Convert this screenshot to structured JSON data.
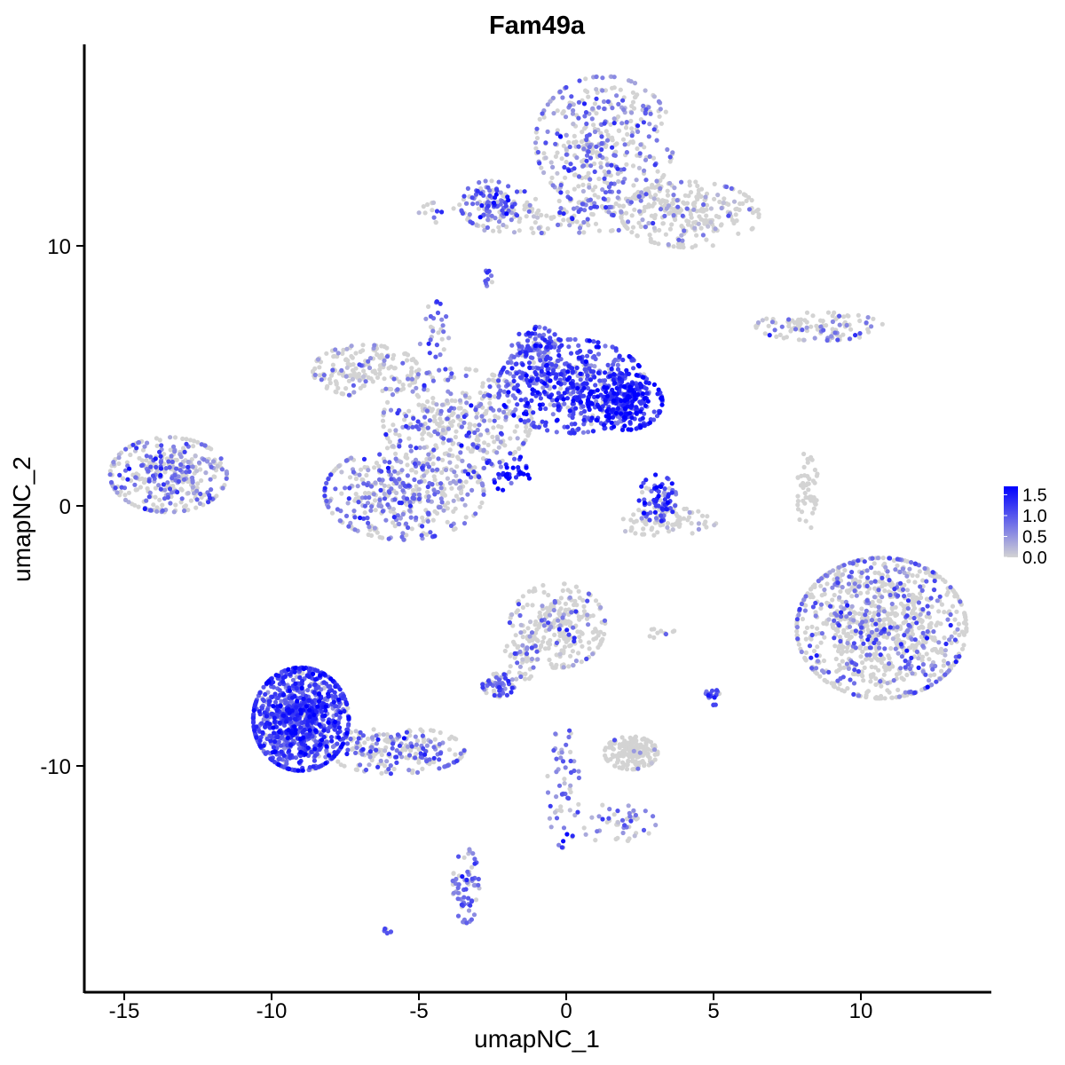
{
  "chart_data": {
    "type": "scatter",
    "title": "Fam49a",
    "xlabel": "umapNC_1",
    "ylabel": "umapNC_2",
    "xlim": [
      -16.5,
      14.5
    ],
    "ylim": [
      -18.5,
      17.5
    ],
    "xticks": [
      -15,
      -10,
      -5,
      0,
      5,
      10
    ],
    "yticks": [
      -10,
      0,
      10
    ],
    "xtick_labels": [
      "-15",
      "-10",
      "-5",
      "0",
      "5",
      "10"
    ],
    "ytick_labels": [
      "-10",
      "0",
      "10"
    ],
    "grid": false,
    "color_scale": {
      "low": "#d3d3d3",
      "high": "#0000ff",
      "min": 0,
      "max": 1.7,
      "breaks": [
        1.5,
        1.0,
        0.5,
        0.0
      ],
      "break_labels": [
        "1.5",
        "1.0",
        "0.5",
        "0.0"
      ],
      "legend_position": "right"
    },
    "clusters": [
      {
        "id": "top-right-cloud",
        "cx": 1.3,
        "cy": 14.0,
        "sx": 1.3,
        "sy": 1.4,
        "n": 420,
        "expr_frac": 0.5,
        "expr_mean": 0.7
      },
      {
        "id": "top-right-arm",
        "cx": 4.2,
        "cy": 11.2,
        "sx": 1.3,
        "sy": 0.7,
        "n": 260,
        "expr_frac": 0.2,
        "expr_mean": 0.6
      },
      {
        "id": "top-bridge",
        "cx": -0.5,
        "cy": 11.3,
        "sx": 2.5,
        "sy": 0.45,
        "n": 180,
        "expr_frac": 0.3,
        "expr_mean": 0.8
      },
      {
        "id": "top-left-tip",
        "cx": -2.6,
        "cy": 11.6,
        "sx": 0.55,
        "sy": 0.5,
        "n": 90,
        "expr_frac": 0.8,
        "expr_mean": 0.9
      },
      {
        "id": "small-island-top",
        "cx": -2.7,
        "cy": 8.8,
        "sx": 0.12,
        "sy": 0.2,
        "n": 10,
        "expr_frac": 0.9,
        "expr_mean": 0.8
      },
      {
        "id": "right-strip",
        "cx": 8.6,
        "cy": 6.9,
        "sx": 1.2,
        "sy": 0.3,
        "n": 110,
        "expr_frac": 0.3,
        "expr_mean": 0.7
      },
      {
        "id": "upper-center-core",
        "cx": 0.2,
        "cy": 4.6,
        "sx": 1.4,
        "sy": 1.0,
        "n": 520,
        "expr_frac": 0.9,
        "expr_mean": 1.1
      },
      {
        "id": "upper-center-right",
        "cx": 2.0,
        "cy": 4.0,
        "sx": 0.7,
        "sy": 0.6,
        "n": 260,
        "expr_frac": 0.95,
        "expr_mean": 1.4
      },
      {
        "id": "upper-center-top",
        "cx": -1.0,
        "cy": 5.8,
        "sx": 0.5,
        "sy": 0.6,
        "n": 120,
        "expr_frac": 0.9,
        "expr_mean": 1.0
      },
      {
        "id": "hub",
        "cx": -3.7,
        "cy": 3.3,
        "sx": 1.4,
        "sy": 1.1,
        "n": 380,
        "expr_frac": 0.4,
        "expr_mean": 0.7
      },
      {
        "id": "left-arm",
        "cx": -6.8,
        "cy": 5.2,
        "sx": 1.0,
        "sy": 0.55,
        "n": 180,
        "expr_frac": 0.2,
        "expr_mean": 0.6
      },
      {
        "id": "lower-blob",
        "cx": -5.5,
        "cy": 0.5,
        "sx": 1.5,
        "sy": 1.0,
        "n": 420,
        "expr_frac": 0.55,
        "expr_mean": 0.7
      },
      {
        "id": "spike",
        "cx": -4.5,
        "cy": 6.8,
        "sx": 0.3,
        "sy": 0.6,
        "n": 30,
        "expr_frac": 0.6,
        "expr_mean": 0.7
      },
      {
        "id": "streak",
        "cx": -1.9,
        "cy": 1.3,
        "sx": 0.5,
        "sy": 0.4,
        "n": 40,
        "expr_frac": 1.0,
        "expr_mean": 1.4
      },
      {
        "id": "far-left",
        "cx": -13.5,
        "cy": 1.2,
        "sx": 1.1,
        "sy": 0.8,
        "n": 360,
        "expr_frac": 0.45,
        "expr_mean": 0.7
      },
      {
        "id": "mid-small",
        "cx": 3.1,
        "cy": 0.3,
        "sx": 0.35,
        "sy": 0.5,
        "n": 80,
        "expr_frac": 0.8,
        "expr_mean": 1.2
      },
      {
        "id": "mid-small-base",
        "cx": 3.3,
        "cy": -0.6,
        "sx": 1.0,
        "sy": 0.3,
        "n": 80,
        "expr_frac": 0.2,
        "expr_mean": 0.6
      },
      {
        "id": "thin-line",
        "cx": 8.2,
        "cy": 0.5,
        "sx": 0.2,
        "sy": 0.9,
        "n": 50,
        "expr_frac": 0.0,
        "expr_mean": 0.0
      },
      {
        "id": "right-big",
        "cx": 10.7,
        "cy": -4.7,
        "sx": 1.6,
        "sy": 1.5,
        "n": 1000,
        "expr_frac": 0.3,
        "expr_mean": 0.8
      },
      {
        "id": "lower-left-big",
        "cx": -9.0,
        "cy": -8.2,
        "sx": 0.9,
        "sy": 1.1,
        "n": 1000,
        "expr_frac": 0.95,
        "expr_mean": 1.1
      },
      {
        "id": "lower-left-tail",
        "cx": -5.8,
        "cy": -9.4,
        "sx": 1.3,
        "sy": 0.5,
        "n": 220,
        "expr_frac": 0.5,
        "expr_mean": 0.8
      },
      {
        "id": "lower-left-drip",
        "cx": -3.4,
        "cy": -14.6,
        "sx": 0.25,
        "sy": 0.8,
        "n": 70,
        "expr_frac": 0.8,
        "expr_mean": 0.8
      },
      {
        "id": "lower-center-top",
        "cx": -0.3,
        "cy": -4.6,
        "sx": 0.9,
        "sy": 0.9,
        "n": 260,
        "expr_frac": 0.2,
        "expr_mean": 0.7
      },
      {
        "id": "lower-center-left",
        "cx": -2.3,
        "cy": -6.9,
        "sx": 0.3,
        "sy": 0.25,
        "n": 60,
        "expr_frac": 0.7,
        "expr_mean": 1.0
      },
      {
        "id": "lower-center-stem",
        "cx": -1.6,
        "cy": -5.9,
        "sx": 0.35,
        "sy": 0.6,
        "n": 50,
        "expr_frac": 0.4,
        "expr_mean": 0.7
      },
      {
        "id": "lower-mid-grey",
        "cx": 2.2,
        "cy": -9.5,
        "sx": 0.5,
        "sy": 0.35,
        "n": 180,
        "expr_frac": 0.03,
        "expr_mean": 0.5
      },
      {
        "id": "lower-stick",
        "cx": -0.1,
        "cy": -10.8,
        "sx": 0.3,
        "sy": 1.3,
        "n": 60,
        "expr_frac": 0.8,
        "expr_mean": 0.7
      },
      {
        "id": "lower-stick-right",
        "cx": 1.6,
        "cy": -12.2,
        "sx": 0.8,
        "sy": 0.4,
        "n": 50,
        "expr_frac": 0.6,
        "expr_mean": 0.7
      },
      {
        "id": "small-dot-right",
        "cx": 5.0,
        "cy": -7.3,
        "sx": 0.15,
        "sy": 0.2,
        "n": 20,
        "expr_frac": 0.9,
        "expr_mean": 0.9
      },
      {
        "id": "small-island-mid",
        "cx": 3.2,
        "cy": -4.9,
        "sx": 0.3,
        "sy": 0.1,
        "n": 10,
        "expr_frac": 0.3,
        "expr_mean": 0.6
      },
      {
        "id": "tiny-bottom",
        "cx": -6.1,
        "cy": -16.3,
        "sx": 0.1,
        "sy": 0.08,
        "n": 6,
        "expr_frac": 1.0,
        "expr_mean": 0.9
      }
    ]
  }
}
